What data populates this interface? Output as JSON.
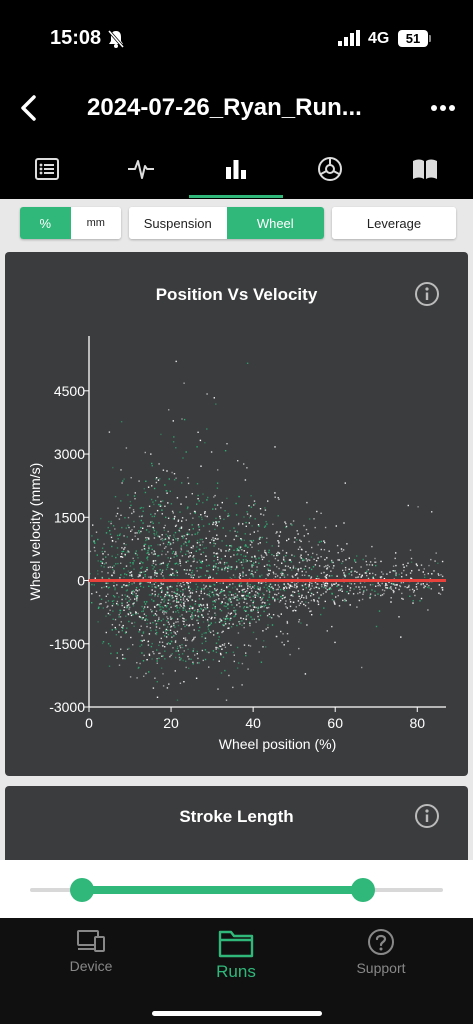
{
  "status_bar": {
    "time": "15:08",
    "network": "4G",
    "battery": "51"
  },
  "header": {
    "title": "2024-07-26_Ryan_Run..."
  },
  "tabs": [
    {
      "name": "list"
    },
    {
      "name": "signal"
    },
    {
      "name": "stats",
      "active": true
    },
    {
      "name": "settings"
    },
    {
      "name": "book"
    }
  ],
  "unit_toggle": {
    "percent": "%",
    "mm": "mm",
    "selected": "%"
  },
  "type_toggle": {
    "suspension": "Suspension",
    "wheel": "Wheel",
    "selected": "Wheel"
  },
  "leverage_label": "Leverage",
  "chart_card": {
    "title": "Position Vs Velocity"
  },
  "chart_data": {
    "type": "scatter",
    "title": "Position Vs Velocity",
    "xlabel": "Wheel position (%)",
    "ylabel": "Wheel velocity (mm/s)",
    "x_ticks": [
      "0",
      "20",
      "40",
      "60",
      "80"
    ],
    "y_ticks": [
      "4500",
      "3000",
      "1500",
      "0",
      "-1500",
      "-3000"
    ],
    "xlim": [
      0,
      87
    ],
    "ylim": [
      -3000,
      5800
    ],
    "reference_line": {
      "y": 0,
      "color": "#e8413c"
    },
    "point_colors": [
      "#ffffff",
      "#2fb87a"
    ],
    "grid": false
  },
  "stroke_card": {
    "title": "Stroke Length"
  },
  "range_slider": {
    "low": 0.127,
    "high": 0.807
  },
  "bottom_nav": {
    "device": "Device",
    "runs": "Runs",
    "support": "Support"
  },
  "colors": {
    "accent": "#2fb87a",
    "card_bg": "#3b3c3e",
    "line": "#e8413c"
  }
}
